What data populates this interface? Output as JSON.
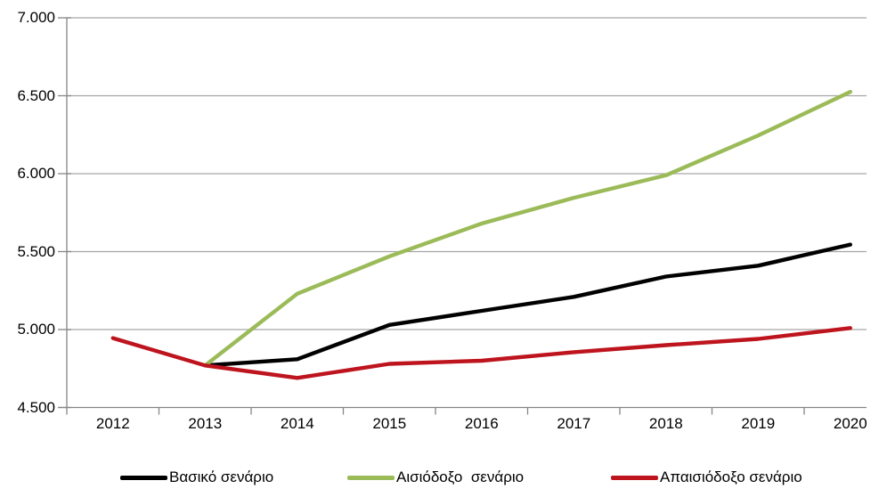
{
  "chart_data": {
    "type": "line",
    "title": "",
    "xlabel": "",
    "ylabel": "",
    "categories": [
      "2012",
      "2013",
      "2014",
      "2015",
      "2016",
      "2017",
      "2018",
      "2019",
      "2020"
    ],
    "series": [
      {
        "name": "Βασικό σενάριο",
        "color": "#000000",
        "values": [
          null,
          4770,
          4810,
          5030,
          5120,
          5210,
          5340,
          5410,
          5545
        ]
      },
      {
        "name": "Αισιόδοξο  σενάριο",
        "color": "#9BBB59",
        "values": [
          null,
          4770,
          5230,
          5470,
          5680,
          5845,
          5990,
          6245,
          6525
        ]
      },
      {
        "name": "Απαισιόδοξο σενάριο",
        "color": "#BE141E",
        "values": [
          4945,
          4770,
          4690,
          4780,
          4800,
          4855,
          4900,
          4940,
          5010
        ]
      }
    ],
    "ylim": [
      4500,
      7000
    ],
    "yticks": [
      4500,
      5000,
      5500,
      6000,
      6500,
      7000
    ],
    "ytick_labels": [
      "4.500",
      "5.000",
      "5.500",
      "6.000",
      "6.500",
      "7.000"
    ],
    "grid": "horizontal",
    "grid_color": "#A6A6A6",
    "axis_color": "#868686",
    "legend_position": "bottom"
  }
}
